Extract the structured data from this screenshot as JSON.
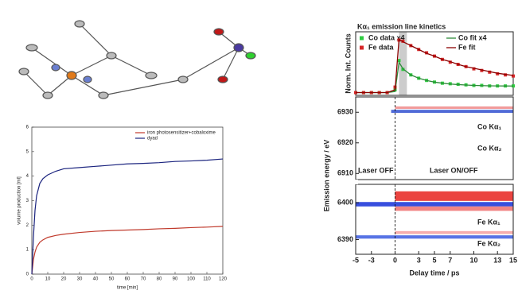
{
  "chart_data": [
    {
      "type": "line",
      "xlabel": "time [min]",
      "ylabel": "volume production [ml]",
      "x": [
        0,
        1,
        2,
        3,
        5,
        7,
        10,
        15,
        20,
        30,
        40,
        50,
        60,
        70,
        80,
        90,
        100,
        110,
        120
      ],
      "series": [
        {
          "name": "iron photosensitizer+cobaloxime",
          "color": "#c0392b",
          "values": [
            0,
            0.6,
            0.9,
            1.1,
            1.3,
            1.4,
            1.5,
            1.58,
            1.63,
            1.7,
            1.75,
            1.78,
            1.8,
            1.82,
            1.85,
            1.87,
            1.9,
            1.92,
            1.95
          ]
        },
        {
          "name": "dyad",
          "color": "#1a237e",
          "values": [
            0,
            1.5,
            2.6,
            3.2,
            3.7,
            3.9,
            4.05,
            4.2,
            4.3,
            4.35,
            4.4,
            4.45,
            4.5,
            4.52,
            4.55,
            4.6,
            4.62,
            4.65,
            4.7
          ]
        }
      ],
      "xlim": [
        0,
        120
      ],
      "xticks": [
        0,
        10,
        20,
        30,
        40,
        50,
        60,
        70,
        80,
        90,
        100,
        110,
        120
      ],
      "ylim": [
        0,
        6
      ],
      "yticks": [
        0,
        1,
        2,
        3,
        4,
        5,
        6
      ]
    },
    {
      "type": "kinetics",
      "title": "Kα₁ emission line kinetics",
      "ylabel": "Norm. Int. Counts",
      "x": [
        -5,
        -4,
        -3,
        -2,
        -1,
        0,
        0.5,
        1,
        2,
        3,
        4,
        5,
        6,
        7,
        8,
        9,
        10,
        11,
        12,
        13,
        14,
        15
      ],
      "series": [
        {
          "name": "Co data x4",
          "color": "#2ecc40",
          "marker": "square",
          "values": [
            0,
            0,
            0,
            0,
            0,
            0.05,
            0.58,
            0.42,
            0.32,
            0.26,
            0.22,
            0.19,
            0.17,
            0.16,
            0.15,
            0.14,
            0.13,
            0.13,
            0.12,
            0.12,
            0.12,
            0.12
          ]
        },
        {
          "name": "Fe data",
          "color": "#d62728",
          "marker": "square",
          "values": [
            0,
            0,
            0,
            0,
            0,
            0.1,
            0.95,
            0.93,
            0.85,
            0.78,
            0.72,
            0.66,
            0.6,
            0.55,
            0.51,
            0.47,
            0.43,
            0.4,
            0.37,
            0.34,
            0.32,
            0.3
          ]
        },
        {
          "name": "Co fit x4",
          "color": "#2e8b3a",
          "marker": "none",
          "values": [
            0,
            0,
            0,
            0,
            0,
            0.02,
            0.55,
            0.43,
            0.32,
            0.26,
            0.22,
            0.19,
            0.17,
            0.155,
            0.145,
            0.137,
            0.13,
            0.126,
            0.123,
            0.121,
            0.12,
            0.119
          ]
        },
        {
          "name": "Fe fit",
          "color": "#8b0000",
          "marker": "none",
          "values": [
            0,
            0,
            0,
            0,
            0,
            0.05,
            0.96,
            0.92,
            0.85,
            0.78,
            0.71,
            0.66,
            0.6,
            0.56,
            0.51,
            0.47,
            0.44,
            0.41,
            0.38,
            0.35,
            0.33,
            0.31
          ]
        }
      ],
      "shaded_region": [
        0.5,
        1.5
      ],
      "xlim": [
        -5,
        15
      ],
      "ylim": [
        -0.05,
        1.1
      ]
    },
    {
      "type": "heatmap",
      "xlim": [
        -5,
        15
      ],
      "ylim": [
        6908,
        6935
      ],
      "yticks": [
        6930,
        6920,
        6910
      ],
      "vline": 0,
      "bands": [
        {
          "energy": 6931.5,
          "width": 0.8,
          "start": 0,
          "end": 15,
          "color": "#f08a8a"
        },
        {
          "energy": 6930.3,
          "width": 1,
          "start": -0.5,
          "end": 15,
          "color": "#3050d0"
        }
      ],
      "annotations": [
        "Co Kα₁",
        "Co Kα₂",
        "Laser OFF",
        "Laser ON/OFF"
      ]
    },
    {
      "type": "heatmap",
      "xlabel": "Delay time / ps",
      "ylabel": "Emission energy / eV",
      "xlim": [
        -5,
        15
      ],
      "ylim": [
        6386,
        6405
      ],
      "xticks": [
        -5,
        -3,
        0,
        3,
        5,
        7,
        10,
        13,
        15
      ],
      "yticks": [
        6400,
        6390
      ],
      "vline": 0,
      "bands": [
        {
          "energy": 6401.8,
          "width": 2.6,
          "start": 0,
          "end": 15,
          "color": "#e8231e"
        },
        {
          "energy": 6399.6,
          "width": 1.2,
          "start": -5,
          "end": 15,
          "color": "#1530d8"
        },
        {
          "energy": 6398.4,
          "width": 1.2,
          "start": 0,
          "end": 15,
          "color": "#f07070"
        },
        {
          "energy": 6391.9,
          "width": 0.8,
          "start": 0,
          "end": 15,
          "color": "#f4a0a0"
        },
        {
          "energy": 6390.7,
          "width": 0.9,
          "start": -5,
          "end": 15,
          "color": "#3a5ae0"
        }
      ],
      "annotations": [
        "Fe Kα₁",
        "Fe Kα₂"
      ]
    }
  ]
}
